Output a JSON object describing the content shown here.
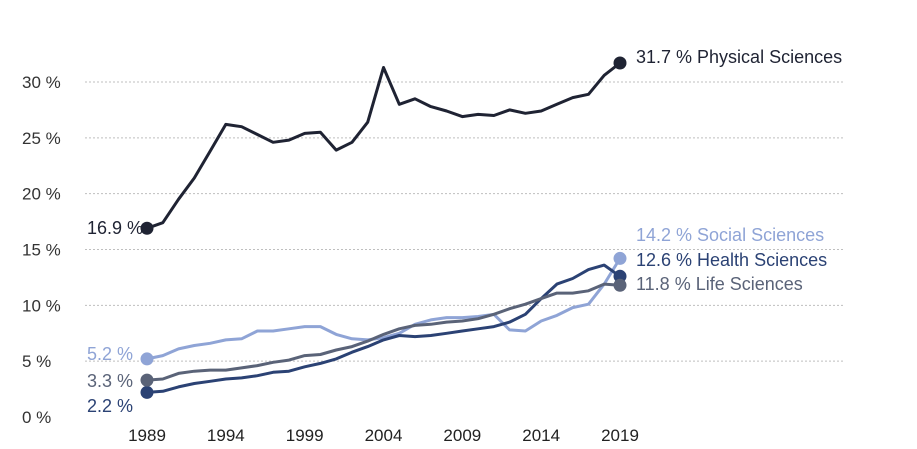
{
  "chart_data": {
    "type": "line",
    "title": "",
    "xlabel": "",
    "ylabel": "",
    "xlim": [
      1989,
      2019
    ],
    "ylim": [
      0,
      30
    ],
    "y_ticks": [
      {
        "value": 0,
        "label": "0 %"
      },
      {
        "value": 5,
        "label": "5 %"
      },
      {
        "value": 10,
        "label": "10 %"
      },
      {
        "value": 15,
        "label": "15 %"
      },
      {
        "value": 20,
        "label": "20 %"
      },
      {
        "value": 25,
        "label": "25 %"
      },
      {
        "value": 30,
        "label": "30 %"
      }
    ],
    "x_ticks": [
      "1989",
      "1994",
      "1999",
      "2004",
      "2009",
      "2014",
      "2019"
    ],
    "grid": "horizontal dotted",
    "legend": "none (series labeled at line ends)",
    "x": [
      1989,
      1990,
      1991,
      1992,
      1993,
      1994,
      1995,
      1996,
      1997,
      1998,
      1999,
      2000,
      2001,
      2002,
      2003,
      2004,
      2005,
      2006,
      2007,
      2008,
      2009,
      2010,
      2011,
      2012,
      2013,
      2014,
      2015,
      2016,
      2017,
      2018,
      2019
    ],
    "series": [
      {
        "name": "Physical Sciences",
        "color": "#1f2333",
        "values": [
          16.9,
          17.4,
          19.5,
          21.4,
          23.8,
          26.2,
          26.0,
          25.3,
          24.6,
          24.8,
          25.4,
          25.5,
          23.9,
          24.6,
          26.4,
          31.3,
          28.0,
          28.5,
          27.8,
          27.4,
          26.9,
          27.1,
          27.0,
          27.5,
          27.2,
          27.4,
          28.0,
          28.6,
          28.9,
          30.6,
          31.7
        ],
        "start_label": "16.9 %",
        "end_label": "31.7 % Physical Sciences"
      },
      {
        "name": "Social Sciences",
        "color": "#8fa4d6",
        "values": [
          5.2,
          5.5,
          6.1,
          6.4,
          6.6,
          6.9,
          7.0,
          7.7,
          7.7,
          7.9,
          8.1,
          8.1,
          7.4,
          7.0,
          6.9,
          7.1,
          7.5,
          8.3,
          8.7,
          8.9,
          8.9,
          9.0,
          9.2,
          7.8,
          7.7,
          8.6,
          9.1,
          9.8,
          10.1,
          11.9,
          14.2
        ],
        "start_label": "5.2 %",
        "end_label": "14.2 % Social Sciences"
      },
      {
        "name": "Health Sciences",
        "color": "#2b4274",
        "values": [
          2.2,
          2.3,
          2.7,
          3.0,
          3.2,
          3.4,
          3.5,
          3.7,
          4.0,
          4.1,
          4.5,
          4.8,
          5.2,
          5.8,
          6.3,
          6.9,
          7.3,
          7.2,
          7.3,
          7.5,
          7.7,
          7.9,
          8.1,
          8.5,
          9.2,
          10.6,
          11.9,
          12.4,
          13.2,
          13.6,
          12.6
        ],
        "start_label": "2.2 %",
        "end_label": "12.6 % Health Sciences"
      },
      {
        "name": "Life Sciences",
        "color": "#5a6378",
        "values": [
          3.3,
          3.4,
          3.9,
          4.1,
          4.2,
          4.2,
          4.4,
          4.6,
          4.9,
          5.1,
          5.5,
          5.6,
          6.0,
          6.3,
          6.8,
          7.4,
          7.9,
          8.2,
          8.3,
          8.5,
          8.6,
          8.8,
          9.2,
          9.7,
          10.1,
          10.6,
          11.1,
          11.1,
          11.3,
          11.9,
          11.8
        ],
        "start_label": "3.3 %",
        "end_label": "11.8 % Life Sciences"
      }
    ]
  }
}
